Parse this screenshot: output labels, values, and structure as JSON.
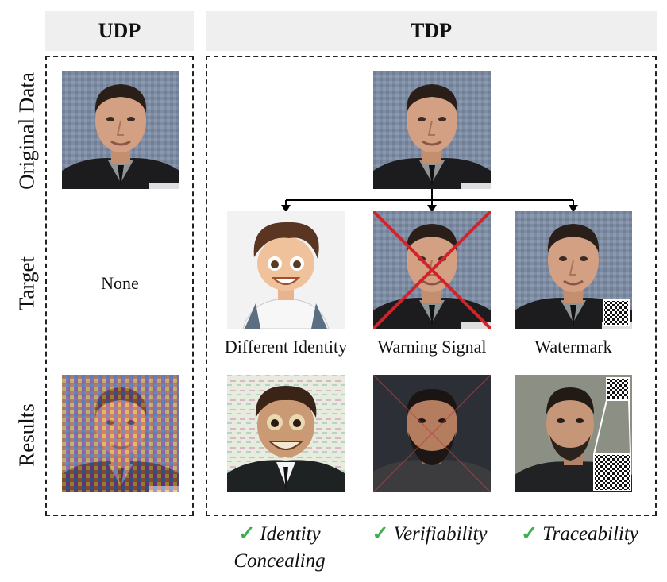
{
  "headers": {
    "udp": "UDP",
    "tdp": "TDP"
  },
  "row_labels": {
    "original": "Original Data",
    "target": "Target",
    "results": "Results"
  },
  "udp": {
    "target_text": "None"
  },
  "tdp": {
    "targets": [
      {
        "caption": "Different Identity"
      },
      {
        "caption": "Warning Signal"
      },
      {
        "caption": "Watermark"
      }
    ],
    "outcomes": [
      {
        "line1": "Identity",
        "line2": "Concealing"
      },
      {
        "line1": "Verifiability",
        "line2": ""
      },
      {
        "line1": "Traceability",
        "line2": ""
      }
    ],
    "check_glyph": "✓"
  },
  "colors": {
    "header_bg": "#efefef",
    "check": "#3fae4f",
    "cross": "#d2232a",
    "arrow": "#000000"
  },
  "icons": [
    "portrait-image",
    "cartoon-portrait-image",
    "noisy-portrait-image",
    "qr-code-icon"
  ]
}
